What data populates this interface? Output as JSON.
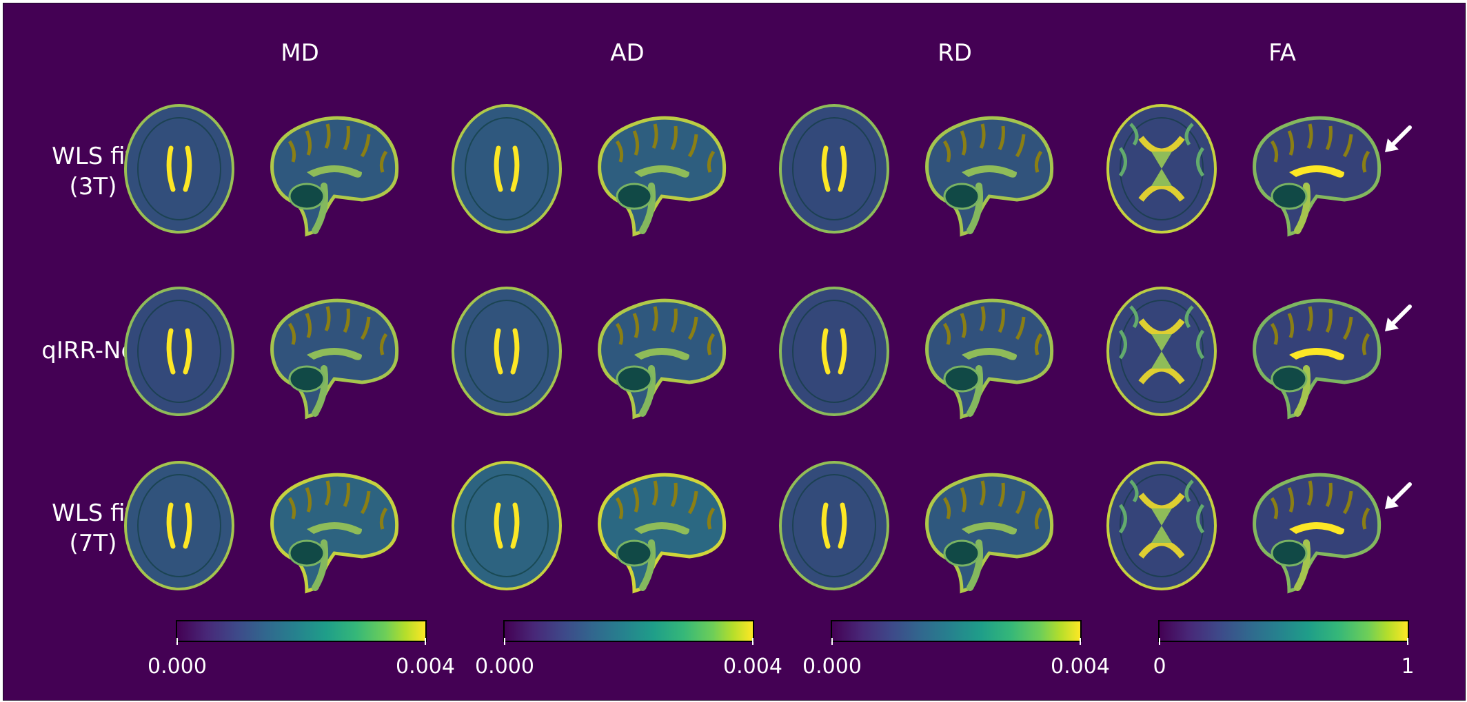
{
  "columns": [
    "MD",
    "AD",
    "RD",
    "FA"
  ],
  "rows": [
    {
      "line1": "WLS fit",
      "line2": "(3T)"
    },
    {
      "line1": "qIRR-Net",
      "line2": ""
    },
    {
      "line1": "WLS fit",
      "line2": "(7T)"
    }
  ],
  "colorbars": [
    {
      "min": "0.000",
      "max": "0.004"
    },
    {
      "min": "0.000",
      "max": "0.004"
    },
    {
      "min": "0.000",
      "max": "0.004"
    },
    {
      "min": "0",
      "max": "1"
    }
  ],
  "colormap": "viridis",
  "colors": {
    "background": "#440154",
    "dark": "#3b2a72",
    "mid": "#21918c",
    "bright": "#fde725",
    "text": "#ffffff"
  },
  "panels": [
    {
      "row": 0,
      "col": "MD",
      "view": "axial",
      "intensity": 0.35
    },
    {
      "row": 0,
      "col": "MD",
      "view": "sagittal",
      "intensity": 0.45
    },
    {
      "row": 0,
      "col": "AD",
      "view": "axial",
      "intensity": 0.45
    },
    {
      "row": 0,
      "col": "AD",
      "view": "sagittal",
      "intensity": 0.5
    },
    {
      "row": 0,
      "col": "RD",
      "view": "axial",
      "intensity": 0.3
    },
    {
      "row": 0,
      "col": "RD",
      "view": "sagittal",
      "intensity": 0.4
    },
    {
      "row": 0,
      "col": "FA",
      "view": "axial",
      "intensity": 0.55
    },
    {
      "row": 0,
      "col": "FA",
      "view": "sagittal",
      "intensity": 0.25
    },
    {
      "row": 1,
      "col": "MD",
      "view": "axial",
      "intensity": 0.3
    },
    {
      "row": 1,
      "col": "MD",
      "view": "sagittal",
      "intensity": 0.4
    },
    {
      "row": 1,
      "col": "AD",
      "view": "axial",
      "intensity": 0.4
    },
    {
      "row": 1,
      "col": "AD",
      "view": "sagittal",
      "intensity": 0.45
    },
    {
      "row": 1,
      "col": "RD",
      "view": "axial",
      "intensity": 0.28
    },
    {
      "row": 1,
      "col": "RD",
      "view": "sagittal",
      "intensity": 0.38
    },
    {
      "row": 1,
      "col": "FA",
      "view": "axial",
      "intensity": 0.5
    },
    {
      "row": 1,
      "col": "FA",
      "view": "sagittal",
      "intensity": 0.22
    },
    {
      "row": 2,
      "col": "MD",
      "view": "axial",
      "intensity": 0.4
    },
    {
      "row": 2,
      "col": "MD",
      "view": "sagittal",
      "intensity": 0.55
    },
    {
      "row": 2,
      "col": "AD",
      "view": "axial",
      "intensity": 0.55
    },
    {
      "row": 2,
      "col": "AD",
      "view": "sagittal",
      "intensity": 0.6
    },
    {
      "row": 2,
      "col": "RD",
      "view": "axial",
      "intensity": 0.32
    },
    {
      "row": 2,
      "col": "RD",
      "view": "sagittal",
      "intensity": 0.45
    },
    {
      "row": 2,
      "col": "FA",
      "view": "axial",
      "intensity": 0.55
    },
    {
      "row": 2,
      "col": "FA",
      "view": "sagittal",
      "intensity": 0.25
    }
  ],
  "arrows": [
    {
      "row": 0,
      "col": "FA"
    },
    {
      "row": 1,
      "col": "FA"
    },
    {
      "row": 2,
      "col": "FA"
    }
  ]
}
